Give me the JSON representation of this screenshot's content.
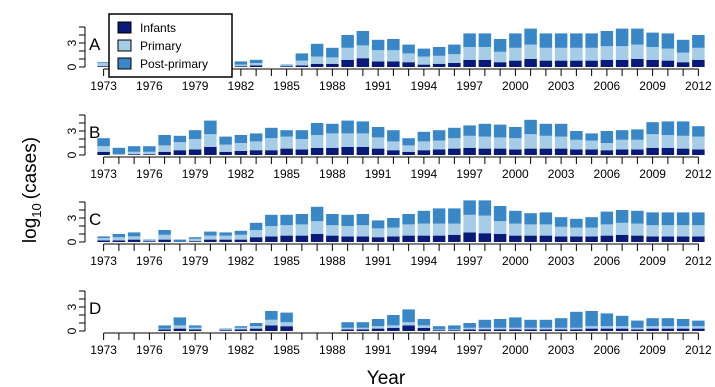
{
  "chart_data": {
    "type": "bar",
    "stacked": true,
    "xlabel": "Year",
    "ylabel_main": "log",
    "ylabel_sub": "10",
    "ylabel_rest": "(cases)",
    "ylim": [
      0,
      5
    ],
    "yticks": [
      0,
      3
    ],
    "years": [
      1973,
      1974,
      1975,
      1976,
      1977,
      1978,
      1979,
      1980,
      1981,
      1982,
      1983,
      1984,
      1985,
      1986,
      1987,
      1988,
      1989,
      1990,
      1991,
      1992,
      1993,
      1994,
      1995,
      1996,
      1997,
      1998,
      1999,
      2000,
      2001,
      2002,
      2003,
      2004,
      2005,
      2006,
      2007,
      2008,
      2009,
      2010,
      2011,
      2012
    ],
    "xtick_labels": [
      "1973",
      "1976",
      "1979",
      "1982",
      "1985",
      "1988",
      "1991",
      "1994",
      "1997",
      "2000",
      "2003",
      "2006",
      "2009",
      "2012"
    ],
    "legend": {
      "position": "top-left",
      "entries": [
        "Infants",
        "Primary",
        "Post-primary"
      ]
    },
    "series_colors": {
      "Infants": "#0a1a78",
      "Primary": "#a6cde8",
      "Post-primary": "#3a87c8"
    },
    "panels": [
      {
        "label": "A",
        "infants": [
          0.1,
          0.1,
          0,
          0,
          0,
          0,
          0,
          0,
          0.1,
          0.1,
          0.2,
          0,
          0.1,
          0.2,
          0.4,
          0.4,
          0.9,
          1.1,
          0.7,
          0.7,
          0.6,
          0.3,
          0.4,
          0.5,
          0.9,
          0.9,
          0.6,
          0.8,
          1.0,
          0.8,
          0.8,
          0.8,
          0.8,
          0.9,
          0.9,
          1.0,
          0.9,
          0.8,
          0.6,
          0.9
        ],
        "primary": [
          0.4,
          0.1,
          0,
          0,
          0,
          0,
          0,
          0,
          0.2,
          0.2,
          0.3,
          0,
          0.1,
          0.6,
          0.9,
          0.8,
          1.5,
          1.6,
          1.4,
          1.4,
          1.1,
          1.0,
          1.0,
          1.1,
          1.6,
          1.6,
          1.3,
          1.6,
          1.8,
          1.6,
          1.6,
          1.6,
          1.6,
          1.7,
          1.7,
          1.8,
          1.6,
          1.5,
          1.2,
          1.5
        ],
        "post_primary": [
          0.1,
          0.1,
          0,
          0,
          0,
          0,
          0,
          0,
          0.2,
          0.4,
          0.4,
          0,
          0.1,
          0.9,
          1.6,
          1.2,
          1.6,
          1.8,
          1.3,
          1.4,
          1.1,
          1.0,
          1.1,
          1.2,
          1.7,
          1.7,
          1.6,
          1.8,
          2.0,
          1.8,
          1.8,
          1.8,
          1.8,
          1.9,
          2.2,
          2.0,
          1.8,
          1.9,
          1.6,
          1.6
        ]
      },
      {
        "label": "B",
        "infants": [
          0.4,
          0,
          0.1,
          0.1,
          0.4,
          0.6,
          0.7,
          1.0,
          0.4,
          0.5,
          0.6,
          0.6,
          0.8,
          0.7,
          0.9,
          0.9,
          1.0,
          1.0,
          0.8,
          0.6,
          0.4,
          0.6,
          0.7,
          0.8,
          0.9,
          0.8,
          0.8,
          0.7,
          0.8,
          0.8,
          0.8,
          0.7,
          0.7,
          0.6,
          0.7,
          0.7,
          0.9,
          0.9,
          0.8,
          0.7
        ],
        "primary": [
          0.7,
          0.1,
          0.3,
          0.3,
          0.8,
          1.0,
          1.3,
          1.6,
          0.9,
          1.0,
          1.1,
          1.5,
          1.5,
          1.3,
          1.6,
          1.8,
          1.7,
          1.7,
          1.4,
          1.1,
          0.8,
          1.1,
          1.1,
          1.3,
          1.5,
          1.5,
          1.4,
          1.4,
          1.8,
          1.6,
          1.5,
          1.2,
          1.1,
          0.9,
          1.2,
          1.2,
          1.7,
          1.6,
          1.6,
          1.6
        ],
        "post_primary": [
          1.0,
          0.8,
          0.7,
          0.7,
          1.3,
          0.8,
          1.1,
          1.7,
          1.0,
          1.0,
          1.0,
          1.3,
          0.8,
          1.1,
          1.5,
          1.2,
          1.6,
          1.5,
          1.3,
          1.4,
          0.9,
          1.2,
          1.3,
          1.3,
          1.3,
          1.6,
          1.6,
          1.4,
          1.8,
          1.5,
          1.6,
          1.1,
          0.9,
          1.5,
          1.2,
          1.3,
          1.5,
          1.7,
          1.8,
          1.3
        ]
      },
      {
        "label": "C",
        "infants": [
          0.2,
          0.2,
          0.3,
          0.1,
          0.3,
          0,
          0.1,
          0.3,
          0.3,
          0.3,
          0.6,
          0.7,
          0.8,
          0.8,
          1.0,
          0.8,
          0.7,
          0.7,
          0.6,
          0.7,
          0.8,
          0.8,
          0.8,
          0.9,
          1.2,
          1.1,
          1.0,
          0.8,
          0.8,
          0.8,
          0.7,
          0.7,
          0.7,
          0.8,
          0.9,
          0.8,
          0.7,
          0.7,
          0.7,
          0.7
        ],
        "primary": [
          0.3,
          0.4,
          0.4,
          0.1,
          0.6,
          0,
          0.3,
          0.5,
          0.5,
          0.6,
          0.9,
          1.3,
          1.3,
          1.4,
          1.6,
          1.3,
          1.3,
          1.4,
          1.1,
          1.1,
          1.4,
          1.5,
          1.5,
          1.4,
          2.2,
          2.2,
          1.6,
          1.5,
          1.4,
          1.4,
          1.2,
          1.1,
          1.1,
          1.4,
          1.5,
          1.5,
          1.4,
          1.4,
          1.4,
          1.4
        ],
        "post_primary": [
          0.2,
          0.4,
          0.5,
          0.1,
          0.6,
          0.3,
          0.2,
          0.5,
          0.4,
          0.5,
          0.9,
          1.4,
          1.3,
          1.3,
          1.8,
          1.4,
          1.4,
          1.4,
          1.0,
          1.2,
          1.3,
          1.6,
          1.9,
          1.9,
          1.8,
          1.9,
          1.9,
          1.6,
          1.4,
          1.5,
          1.2,
          1.1,
          1.3,
          1.6,
          1.6,
          1.6,
          1.6,
          1.6,
          1.6,
          1.6
        ]
      },
      {
        "label": "D",
        "infants": [
          0,
          0,
          0,
          0,
          0.2,
          0.3,
          0.2,
          0,
          0.1,
          0.2,
          0.3,
          0.7,
          0.6,
          0,
          0,
          0,
          0.2,
          0.2,
          0.3,
          0.4,
          0.7,
          0.4,
          0.1,
          0.1,
          0.2,
          0.2,
          0.2,
          0.2,
          0.2,
          0.2,
          0.2,
          0.2,
          0.3,
          0.3,
          0.3,
          0.2,
          0.3,
          0.3,
          0.3,
          0.3
        ],
        "primary": [
          0,
          0,
          0,
          0,
          0.1,
          0.4,
          0.2,
          0,
          0.1,
          0.2,
          0.3,
          0.7,
          0.5,
          0,
          0,
          0,
          0.2,
          0.2,
          0.3,
          0.3,
          0.4,
          0.3,
          0.1,
          0.1,
          0.2,
          0.2,
          0.2,
          0.2,
          0.2,
          0.2,
          0.2,
          0.2,
          0.3,
          0.3,
          0.3,
          0.2,
          0.3,
          0.3,
          0.3,
          0.3
        ],
        "post_primary": [
          0,
          0,
          0,
          0,
          0.4,
          1.0,
          0.3,
          0,
          0.1,
          0.2,
          0.4,
          1.1,
          1.2,
          0,
          0,
          0,
          0.7,
          0.7,
          0.9,
          1.3,
          1.6,
          0.8,
          0.4,
          0.5,
          0.6,
          1.0,
          1.1,
          1.3,
          1.0,
          1.0,
          1.2,
          2.0,
          1.9,
          1.6,
          1.3,
          0.9,
          1.0,
          1.0,
          0.9,
          0.7
        ]
      }
    ]
  }
}
